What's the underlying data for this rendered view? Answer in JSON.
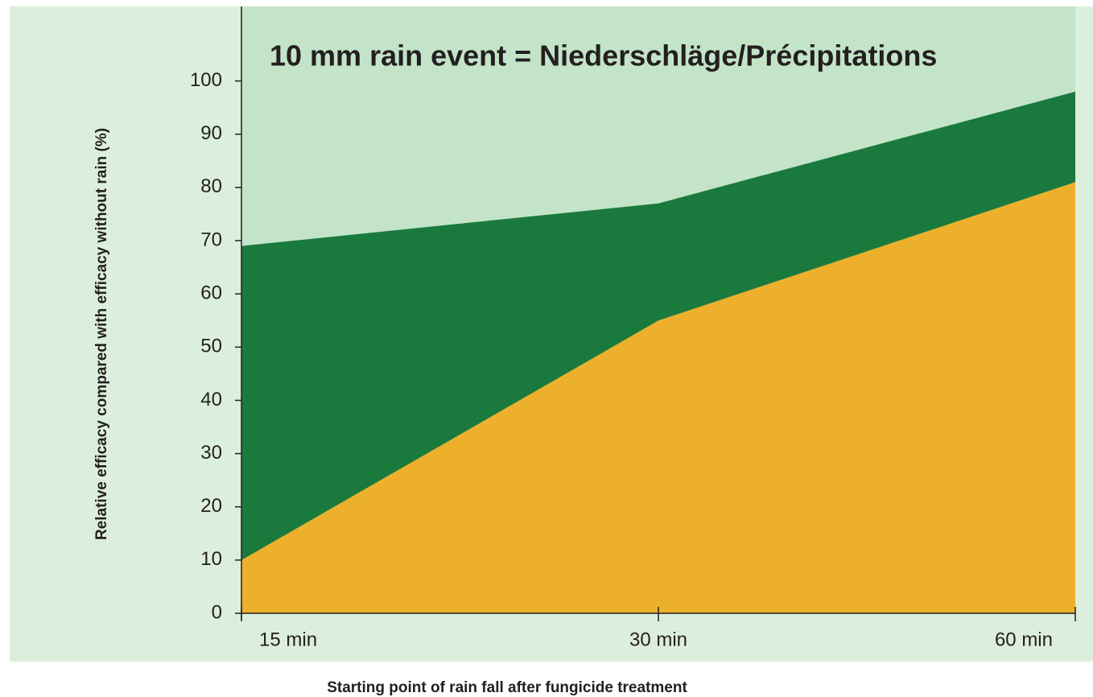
{
  "chart_data": {
    "type": "area",
    "title": "10 mm rain event = Niederschläge/Précipitations",
    "xlabel": "Starting point of rain fall after fungicide treatment",
    "ylabel": "Relative efficacy compared with efficacy without rain (%)",
    "categories": [
      "15 min",
      "30 min",
      "60 min"
    ],
    "series": [
      {
        "color": "#1a7a3e",
        "values": [
          69,
          77,
          98
        ]
      },
      {
        "color": "#edb02c",
        "values": [
          10,
          55,
          81
        ]
      }
    ],
    "ylim": [
      0,
      114
    ],
    "yticks": [
      0,
      10,
      20,
      30,
      40,
      50,
      60,
      70,
      80,
      90,
      100
    ],
    "background": "#c3e4c8"
  }
}
